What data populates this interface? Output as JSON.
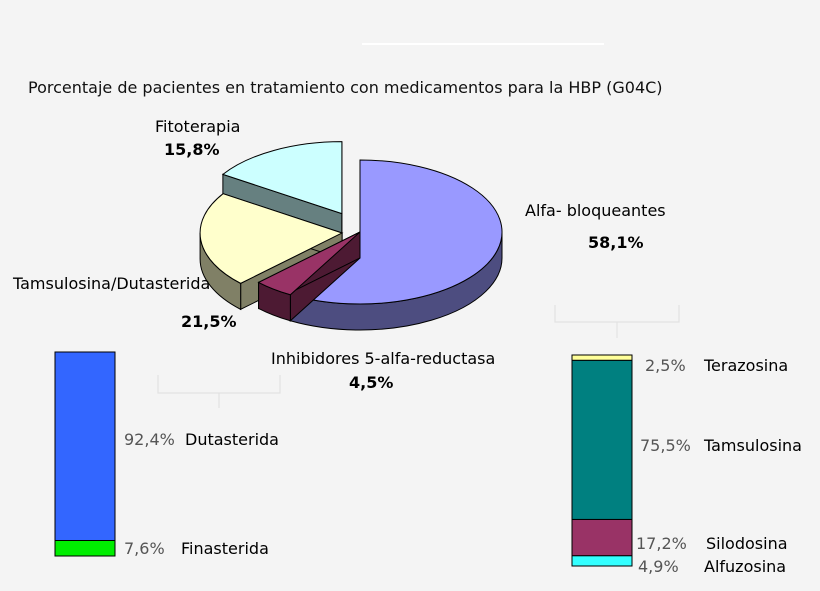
{
  "chart_data": [
    {
      "type": "pie",
      "title": "Porcentaje de pacientes en tratamiento con medicamentos para la HBP (G04C)",
      "slices": [
        {
          "label": "Alfa- bloqueantes",
          "value": 58.1,
          "value_label": "58,1%",
          "color": "#9999ff"
        },
        {
          "label": "Inhibidores 5-alfa-reductasa",
          "value": 4.5,
          "value_label": "4,5%",
          "color": "#993366"
        },
        {
          "label": "Tamsulosina/Dutasterida",
          "value": 21.5,
          "value_label": "21,5%",
          "color": "#ffffcc"
        },
        {
          "label": "Fitoterapia",
          "value": 15.8,
          "value_label": "15,8%",
          "color": "#ccffff"
        }
      ]
    },
    {
      "type": "bar",
      "subtype": "stacked-100",
      "breakdown_of": "Inhibidores 5-alfa-reductasa",
      "segments": [
        {
          "label": "Finasterida",
          "value": 7.6,
          "value_label": "7,6%",
          "color": "#00ee00"
        },
        {
          "label": "Dutasterida",
          "value": 92.4,
          "value_label": "92,4%",
          "color": "#3366ff"
        }
      ]
    },
    {
      "type": "bar",
      "subtype": "stacked-100",
      "breakdown_of": "Alfa- bloqueantes",
      "segments": [
        {
          "label": "Alfuzosina",
          "value": 4.9,
          "value_label": "4,9%",
          "color": "#33ffff"
        },
        {
          "label": "Silodosina",
          "value": 17.2,
          "value_label": "17,2%",
          "color": "#993366"
        },
        {
          "label": "Tamsulosina",
          "value": 75.5,
          "value_label": "75,5%",
          "color": "#008080"
        },
        {
          "label": "Terazosina",
          "value": 2.5,
          "value_label": "2,5%",
          "color": "#ffff99"
        }
      ]
    }
  ]
}
